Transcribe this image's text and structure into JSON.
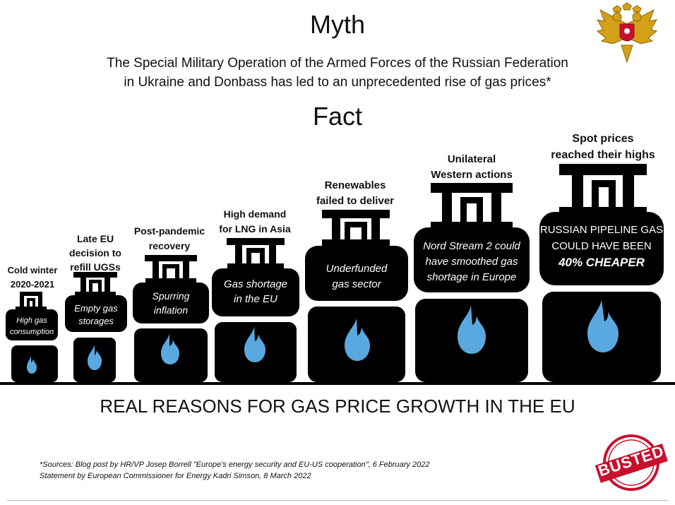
{
  "header": {
    "myth_title": "Myth",
    "myth_line1": "The Special Military Operation of the Armed Forces of the Russian Federation",
    "myth_line2": "in Ukraine and Donbass has led to an unprecedented rise of gas prices*",
    "fact_title": "Fact",
    "emblem_icon": "double-headed-eagle-emblem-icon"
  },
  "cylinders": [
    {
      "label": [
        "Cold winter",
        "2020-2021"
      ],
      "text": [
        "High gas",
        "consumption"
      ]
    },
    {
      "label": [
        "Late EU",
        "decision to",
        "refill UGSs"
      ],
      "text": [
        "Empty gas",
        "storages"
      ]
    },
    {
      "label": [
        "Post-pandemic",
        "recovery"
      ],
      "text": [
        "Spurring",
        "inflation"
      ]
    },
    {
      "label": [
        "High demand",
        "for LNG in Asia"
      ],
      "text": [
        "Gas shortage",
        "in the EU"
      ]
    },
    {
      "label": [
        "Renewables",
        "failed to deliver"
      ],
      "text": [
        "Underfunded",
        "gas sector"
      ]
    },
    {
      "label": [
        "Unilateral",
        "Western actions"
      ],
      "text": [
        "Nord Stream 2 could",
        "have smoothed gas",
        "shortage in Europe"
      ]
    },
    {
      "label": [
        "Spot prices",
        "reached their highs"
      ],
      "text": [
        "RUSSIAN PIPELINE GAS",
        "COULD HAVE BEEN",
        "40% CHEAPER"
      ]
    }
  ],
  "bottom_heading": "REAL REASONS FOR GAS PRICE GROWTH IN THE EU",
  "sources": {
    "line1": "*Sources: Blog post by HR/VP Josep Borrell \"Europe's energy security and EU-US cooperation\", 6 February 2022",
    "line2": "Statement by European Commissioner for Energy Kadri Simson, 8 March 2022"
  },
  "stamp": {
    "text": "BUSTED",
    "color": "#c8102e"
  },
  "colors": {
    "cylinder": "#000000",
    "flame": "#5aa8e0",
    "cylinder_text": "#ffffff"
  }
}
